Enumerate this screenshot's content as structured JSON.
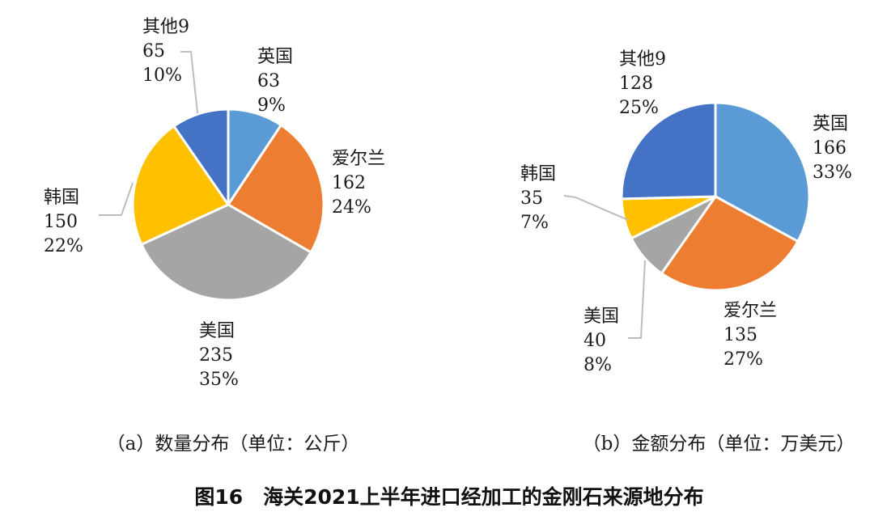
{
  "figure_title": "图16　海关2021上半年进口经加工的金刚石来源地分布",
  "chart_data": [
    {
      "type": "pie",
      "subtitle": "（a）数量分布（单位：公斤）",
      "start": "12 o'clock",
      "direction": "clockwise",
      "slices": [
        {
          "name": "英国",
          "value": 63,
          "pct": "9%",
          "color": "#5b9bd5"
        },
        {
          "name": "爱尔兰",
          "value": 162,
          "pct": "24%",
          "color": "#ed7d31"
        },
        {
          "name": "美国",
          "value": 235,
          "pct": "35%",
          "color": "#a5a5a5"
        },
        {
          "name": "韩国",
          "value": 150,
          "pct": "22%",
          "color": "#ffc000"
        },
        {
          "name": "其他9",
          "value": 65,
          "pct": "10%",
          "color": "#4472c4"
        }
      ]
    },
    {
      "type": "pie",
      "subtitle": "（b）金额分布（单位：万美元）",
      "start": "12 o'clock",
      "direction": "clockwise",
      "slices": [
        {
          "name": "英国",
          "value": 166,
          "pct": "33%",
          "color": "#5b9bd5"
        },
        {
          "name": "爱尔兰",
          "value": 135,
          "pct": "27%",
          "color": "#ed7d31"
        },
        {
          "name": "美国",
          "value": 40,
          "pct": "8%",
          "color": "#a5a5a5"
        },
        {
          "name": "韩国",
          "value": 35,
          "pct": "7%",
          "color": "#ffc000"
        },
        {
          "name": "其他9",
          "value": 128,
          "pct": "25%",
          "color": "#4472c4"
        }
      ]
    }
  ]
}
